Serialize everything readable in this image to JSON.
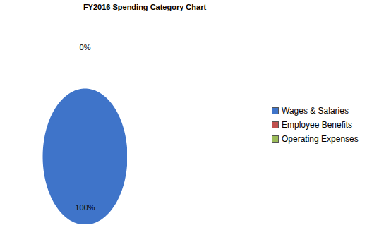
{
  "chart_data": {
    "type": "pie",
    "title": "FY2016 Spending Category Chart",
    "categories": [
      "Wages & Salaries",
      "Employee Benefits",
      "Operating Expenses"
    ],
    "values": [
      100,
      0,
      0
    ],
    "value_labels": [
      "100%",
      "0%",
      null
    ],
    "colors": [
      "#3f74c9",
      "#c0504d",
      "#9bbb59"
    ],
    "data_labels": true,
    "legend": "right"
  }
}
